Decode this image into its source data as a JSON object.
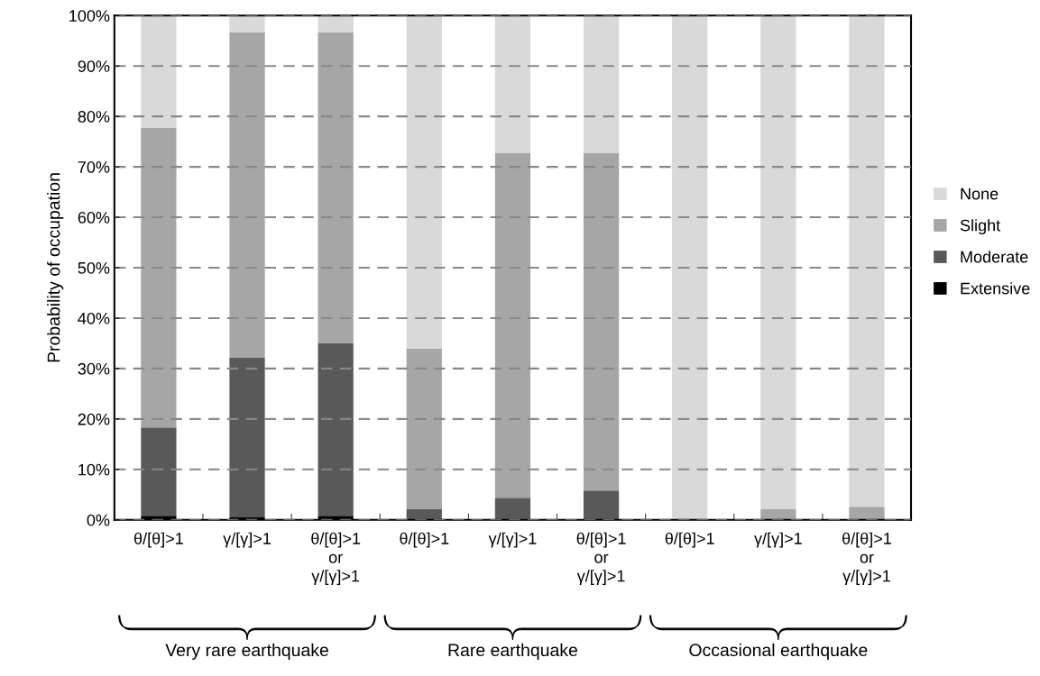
{
  "chart_data": {
    "type": "bar",
    "stacked": true,
    "ylabel": "Probability of occupation",
    "categories": [
      "θ/[θ]>1",
      "γ/[γ]>1",
      "θ/[θ]>1\nor\nγ/[γ]>1",
      "θ/[θ]>1",
      "γ/[γ]>1",
      "θ/[θ]>1\nor\nγ/[γ]>1",
      "θ/[θ]>1",
      "γ/[γ]>1",
      "θ/[θ]>1\nor\nγ/[γ]>1"
    ],
    "series": [
      {
        "name": "Extensive",
        "color": "#000000",
        "values": [
          0.8,
          0.5,
          0.8,
          0,
          0,
          0,
          0,
          0,
          0
        ]
      },
      {
        "name": "Moderate",
        "color": "#595959",
        "values": [
          17.5,
          31.7,
          34.2,
          2.2,
          4.4,
          5.8,
          0,
          0,
          0
        ]
      },
      {
        "name": "Slight",
        "color": "#a6a6a6",
        "values": [
          59.5,
          64.5,
          61.7,
          31.8,
          68.4,
          67,
          0,
          2.2,
          2.6
        ]
      },
      {
        "name": "None",
        "color": "#d9d9d9",
        "values": [
          22.2,
          3.3,
          3.3,
          66,
          27.2,
          27.2,
          100,
          97.8,
          97.4
        ]
      }
    ],
    "ylim": [
      0,
      100
    ],
    "yticks": [
      {
        "value": 0,
        "label": "0%"
      },
      {
        "value": 10,
        "label": "10%"
      },
      {
        "value": 20,
        "label": "20%"
      },
      {
        "value": 30,
        "label": "30%"
      },
      {
        "value": 40,
        "label": "40%"
      },
      {
        "value": 50,
        "label": "50%"
      },
      {
        "value": 60,
        "label": "60%"
      },
      {
        "value": 70,
        "label": "70%"
      },
      {
        "value": 80,
        "label": "80%"
      },
      {
        "value": 90,
        "label": "90%"
      },
      {
        "value": 100,
        "label": "100%"
      }
    ],
    "grid": "y",
    "line_style": "dashed",
    "legend": "right",
    "annotations": [
      "Very rare earthquake",
      "Rare earthquake",
      "Occasional earthquake"
    ]
  }
}
